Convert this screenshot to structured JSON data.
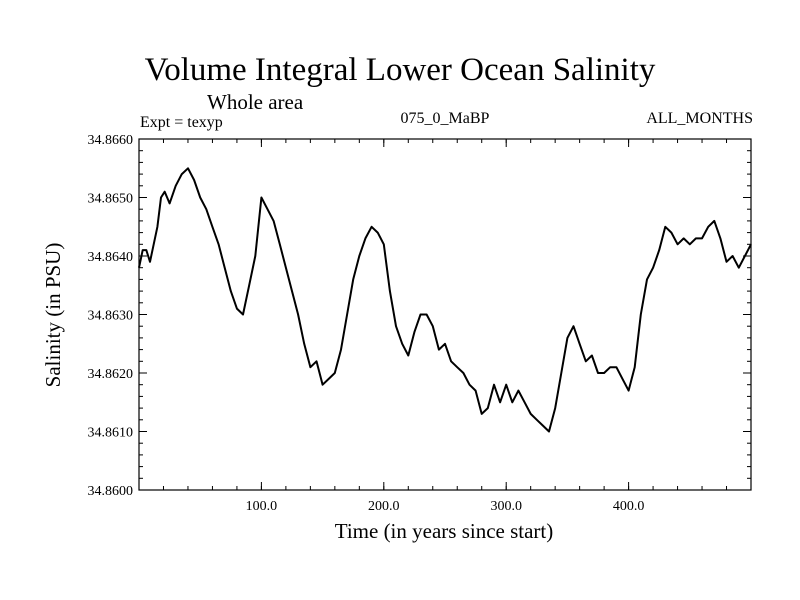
{
  "header": {
    "title": "Volume Integral Lower Ocean Salinity",
    "subtitle": "Whole area",
    "experiment": "Expt = texyp",
    "case": "075_0_MaBP",
    "months": "ALL_MONTHS"
  },
  "chart_data": {
    "type": "line",
    "title": "Volume Integral Lower Ocean Salinity",
    "xlabel": "Time (in years since start)",
    "ylabel": "Salinity (in PSU)",
    "xlim": [
      0,
      500
    ],
    "ylim": [
      34.86,
      34.866
    ],
    "x_ticks": [
      100,
      200,
      300,
      400
    ],
    "x_tick_labels": [
      "100.0",
      "200.0",
      "300.0",
      "400.0"
    ],
    "y_ticks": [
      34.86,
      34.861,
      34.862,
      34.863,
      34.864,
      34.865,
      34.866
    ],
    "y_tick_labels": [
      "34.8600",
      "34.8610",
      "34.8620",
      "34.8630",
      "34.8640",
      "34.8650",
      "34.8660"
    ],
    "grid": false,
    "series": [
      {
        "color": "#000000",
        "x": [
          0,
          3,
          6,
          9,
          12,
          15,
          18,
          21,
          25,
          30,
          35,
          40,
          45,
          50,
          55,
          60,
          65,
          70,
          75,
          80,
          85,
          90,
          95,
          100,
          105,
          110,
          115,
          120,
          125,
          130,
          135,
          140,
          145,
          150,
          155,
          160,
          165,
          170,
          175,
          180,
          185,
          190,
          195,
          200,
          205,
          210,
          215,
          220,
          225,
          230,
          235,
          240,
          245,
          250,
          255,
          260,
          265,
          270,
          275,
          280,
          285,
          290,
          295,
          300,
          305,
          310,
          315,
          320,
          325,
          330,
          335,
          340,
          345,
          350,
          355,
          360,
          365,
          370,
          375,
          380,
          385,
          390,
          395,
          400,
          405,
          410,
          415,
          420,
          425,
          430,
          435,
          440,
          445,
          450,
          455,
          460,
          465,
          470,
          475,
          480,
          485,
          490,
          495,
          500
        ],
        "y": [
          34.8638,
          34.8641,
          34.8641,
          34.8639,
          34.8642,
          34.8645,
          34.865,
          34.8651,
          34.8649,
          34.8652,
          34.8654,
          34.8655,
          34.8653,
          34.865,
          34.8648,
          34.8645,
          34.8642,
          34.8638,
          34.8634,
          34.8631,
          34.863,
          34.8635,
          34.864,
          34.865,
          34.8648,
          34.8646,
          34.8642,
          34.8638,
          34.8634,
          34.863,
          34.8625,
          34.8621,
          34.8622,
          34.8618,
          34.8619,
          34.862,
          34.8624,
          34.863,
          34.8636,
          34.864,
          34.8643,
          34.8645,
          34.8644,
          34.8642,
          34.8634,
          34.8628,
          34.8625,
          34.8623,
          34.8627,
          34.863,
          34.863,
          34.8628,
          34.8624,
          34.8625,
          34.8622,
          34.8621,
          34.862,
          34.8618,
          34.8617,
          34.8613,
          34.8614,
          34.8618,
          34.8615,
          34.8618,
          34.8615,
          34.8617,
          34.8615,
          34.8613,
          34.8612,
          34.8611,
          34.861,
          34.8614,
          34.862,
          34.8626,
          34.8628,
          34.8625,
          34.8622,
          34.8623,
          34.862,
          34.862,
          34.8621,
          34.8621,
          34.8619,
          34.8617,
          34.8621,
          34.863,
          34.8636,
          34.8638,
          34.8641,
          34.8645,
          34.8644,
          34.8642,
          34.8643,
          34.8642,
          34.8643,
          34.8643,
          34.8645,
          34.8646,
          34.8643,
          34.8639,
          34.864,
          34.8638,
          34.864,
          34.8642
        ]
      }
    ]
  }
}
